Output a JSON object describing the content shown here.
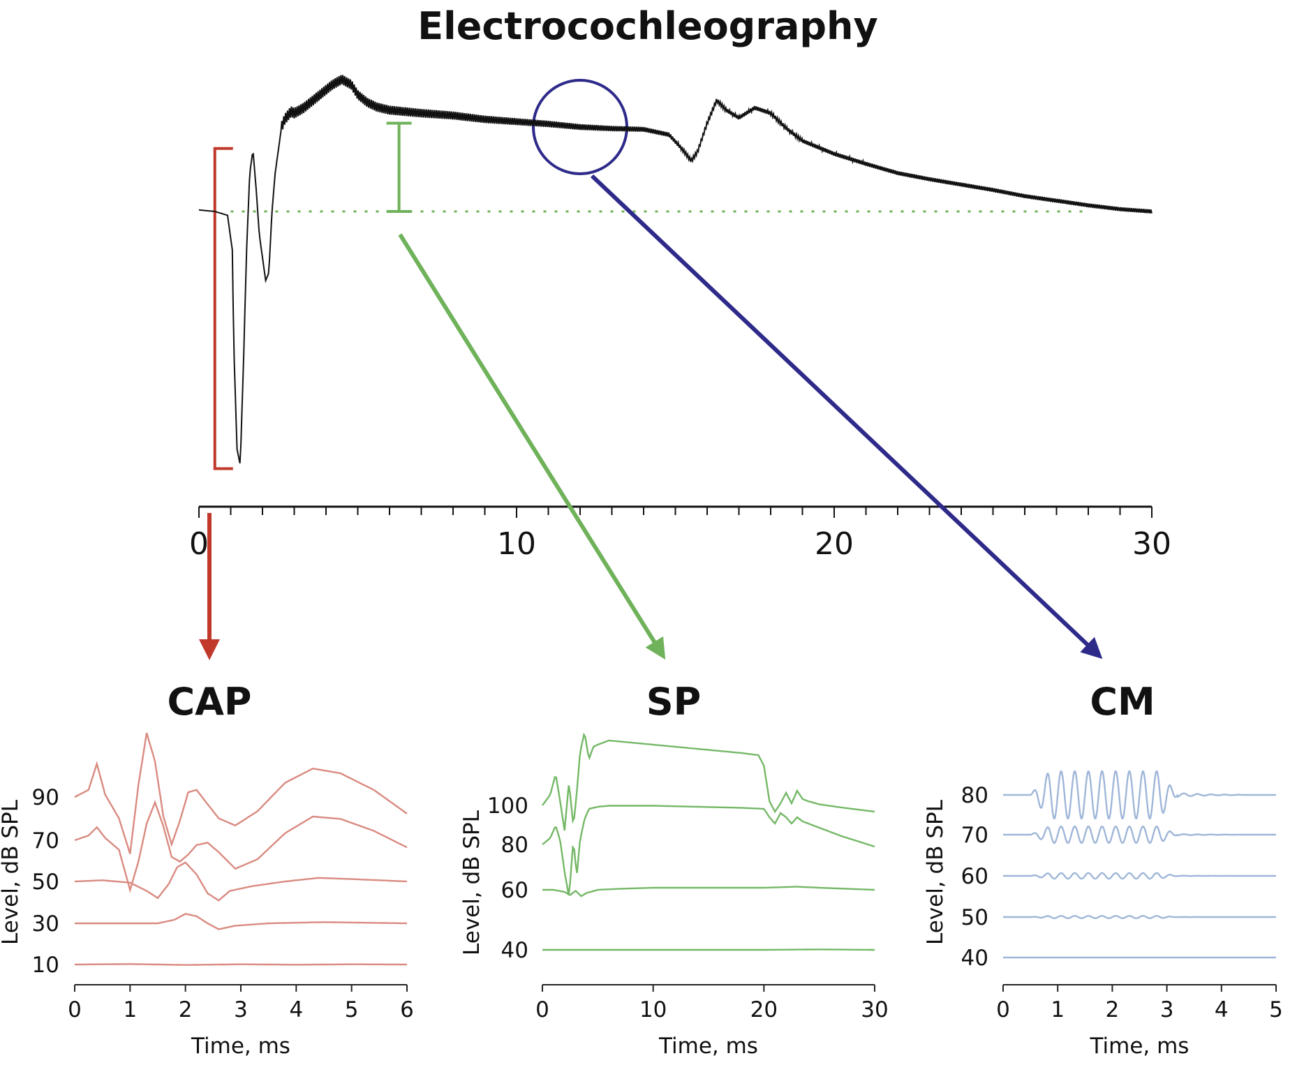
{
  "figure_title": "Electrocochleography",
  "colors": {
    "main_trace": "#111111",
    "cap": "#c0392b",
    "cap_trace": "#d98a80",
    "sp": "#6fb25a",
    "sp_trace": "#74b866",
    "cm": "#2e2a8a",
    "cm_trace": "#9fb6d8"
  },
  "chart_data": [
    {
      "id": "ecochg",
      "type": "line",
      "title": "Electrocochleography",
      "xlabel": "",
      "ylabel": "",
      "xlim": [
        0,
        30
      ],
      "x_ticks": [
        "0",
        "10",
        "20",
        "30"
      ],
      "minor_tick_step": 1,
      "baseline": 0,
      "annotations": [
        {
          "kind": "bracket",
          "target": "CAP",
          "color": "#c0392b",
          "x": 0.5,
          "y_range": [
            0.82,
            -3.35
          ]
        },
        {
          "kind": "range_marker",
          "target": "SP",
          "color": "#6fb25a",
          "x": 6.3,
          "y_range": [
            1.15,
            0
          ]
        },
        {
          "kind": "circle",
          "target": "CM",
          "color": "#2e2a8a",
          "x": 12.0,
          "y": 1.1
        },
        {
          "kind": "dotted_baseline",
          "color": "#6fb25a",
          "x_range": [
            1.0,
            28.0
          ],
          "y": 0
        }
      ],
      "series": [
        {
          "x": [
            0,
            0.5,
            0.9,
            1.05,
            1.1,
            1.2,
            1.3,
            1.4,
            1.5,
            1.6,
            1.7,
            1.8,
            1.9,
            2.0,
            2.1,
            2.2,
            2.3,
            2.4,
            2.5,
            2.6,
            2.7,
            2.8,
            2.9,
            3.0,
            3.3,
            3.6,
            3.9,
            4.2,
            4.5,
            4.8,
            5.0,
            5.3,
            5.6,
            6.0,
            7.0,
            8.0,
            9.0,
            10.0,
            11.0,
            12.0,
            13.0,
            14.0,
            14.8,
            15.2,
            15.5,
            15.7,
            16.0,
            16.3,
            16.6,
            17.0,
            17.5,
            18.0,
            18.5,
            19.0,
            20.0,
            21.0,
            22.0,
            23.0,
            24.0,
            25.0,
            26.0,
            27.0,
            28.0,
            29.0,
            30.0
          ],
          "y": [
            0.02,
            0.0,
            -0.05,
            -0.5,
            -1.8,
            -3.1,
            -3.3,
            -2.0,
            -0.5,
            0.5,
            0.8,
            0.3,
            -0.3,
            -0.6,
            -0.9,
            -0.8,
            0.0,
            0.5,
            0.8,
            1.1,
            1.2,
            1.25,
            1.3,
            1.28,
            1.35,
            1.45,
            1.55,
            1.65,
            1.72,
            1.65,
            1.52,
            1.42,
            1.36,
            1.32,
            1.28,
            1.25,
            1.2,
            1.17,
            1.14,
            1.1,
            1.08,
            1.07,
            1.0,
            0.82,
            0.66,
            0.78,
            1.15,
            1.45,
            1.32,
            1.22,
            1.35,
            1.28,
            1.08,
            0.92,
            0.75,
            0.62,
            0.5,
            0.42,
            0.35,
            0.28,
            0.2,
            0.14,
            0.08,
            0.03,
            0.0
          ]
        }
      ]
    },
    {
      "id": "cap",
      "type": "line",
      "title": "CAP",
      "xlabel": "Time, ms",
      "ylabel": "Level, dB SPL",
      "xlim": [
        0,
        6
      ],
      "x_ticks": [
        "0",
        "1",
        "2",
        "3",
        "4",
        "5",
        "6"
      ],
      "level_labels": [
        "90",
        "70",
        "50",
        "30",
        "10"
      ],
      "series": [
        {
          "name": "90",
          "x": [
            0,
            0.25,
            0.4,
            0.55,
            0.8,
            1.0,
            1.15,
            1.3,
            1.45,
            1.6,
            1.75,
            1.9,
            2.05,
            2.2,
            2.4,
            2.6,
            2.9,
            3.3,
            3.8,
            4.3,
            4.8,
            5.4,
            6.0
          ],
          "y": [
            0,
            0.3,
            1.4,
            0.1,
            -0.9,
            -2.4,
            0.5,
            2.7,
            1.5,
            -0.8,
            -2.0,
            -1.0,
            0.2,
            0.3,
            -0.3,
            -0.9,
            -1.2,
            -0.6,
            0.6,
            1.2,
            1.0,
            0.3,
            -0.7
          ]
        },
        {
          "name": "70",
          "x": [
            0,
            0.25,
            0.4,
            0.55,
            0.8,
            1.0,
            1.15,
            1.3,
            1.45,
            1.6,
            1.75,
            1.9,
            2.05,
            2.2,
            2.4,
            2.6,
            2.9,
            3.3,
            3.8,
            4.3,
            4.8,
            5.4,
            6.0
          ],
          "y": [
            0,
            0.2,
            0.55,
            0.1,
            -0.4,
            -2.1,
            -0.9,
            0.7,
            1.6,
            0.6,
            -0.7,
            -0.9,
            -0.6,
            -0.2,
            -0.1,
            -0.5,
            -1.2,
            -0.8,
            0.3,
            1.0,
            0.9,
            0.4,
            -0.3
          ]
        },
        {
          "name": "50",
          "x": [
            0,
            0.5,
            1.0,
            1.3,
            1.5,
            1.7,
            1.85,
            2.0,
            2.2,
            2.4,
            2.6,
            2.8,
            3.2,
            3.8,
            4.4,
            5.0,
            6.0
          ],
          "y": [
            0,
            0.05,
            -0.05,
            -0.4,
            -0.7,
            -0.1,
            0.6,
            0.8,
            0.3,
            -0.5,
            -0.8,
            -0.4,
            -0.2,
            0.0,
            0.15,
            0.1,
            0.0
          ]
        },
        {
          "name": "30",
          "x": [
            0,
            1.0,
            1.5,
            1.8,
            2.0,
            2.2,
            2.4,
            2.6,
            2.9,
            3.5,
            4.5,
            6.0
          ],
          "y": [
            0,
            0.0,
            0.0,
            0.15,
            0.4,
            0.3,
            0.0,
            -0.25,
            -0.1,
            0.0,
            0.05,
            0.0
          ]
        },
        {
          "name": "10",
          "x": [
            0,
            1.0,
            2.0,
            3.0,
            4.0,
            5.0,
            6.0
          ],
          "y": [
            0,
            0.02,
            -0.02,
            0.01,
            -0.01,
            0.01,
            0.0
          ]
        }
      ]
    },
    {
      "id": "sp",
      "type": "line",
      "title": "SP",
      "xlabel": "Time, ms",
      "ylabel": "Level, dB SPL",
      "xlim": [
        0,
        30
      ],
      "x_ticks": [
        "0",
        "10",
        "20",
        "30"
      ],
      "level_labels": [
        "100",
        "80",
        "60",
        "40"
      ],
      "series": [
        {
          "name": "100",
          "x": [
            0,
            0.7,
            1.2,
            1.6,
            2.0,
            2.4,
            2.8,
            3.1,
            3.4,
            3.8,
            4.2,
            4.6,
            5.0,
            6.0,
            8.0,
            10.0,
            14.0,
            18.0,
            19.5,
            20.0,
            20.5,
            21.0,
            21.5,
            22.0,
            22.5,
            23.0,
            23.5,
            24.0,
            25.0,
            27.0,
            30.0
          ],
          "y": [
            0,
            0.5,
            1.5,
            0.2,
            -1.2,
            1.1,
            -1.0,
            0.6,
            2.5,
            3.5,
            2.2,
            2.8,
            2.9,
            3.1,
            3.0,
            2.9,
            2.7,
            2.5,
            2.4,
            1.9,
            0.2,
            -0.3,
            0.1,
            0.6,
            0.1,
            0.7,
            0.3,
            0.2,
            0.05,
            -0.1,
            -0.3
          ]
        },
        {
          "name": "80",
          "x": [
            0,
            0.7,
            1.2,
            1.6,
            2.0,
            2.4,
            2.8,
            3.1,
            3.4,
            3.8,
            4.2,
            4.6,
            5.0,
            6.0,
            8.0,
            10.0,
            14.0,
            18.0,
            20.0,
            20.5,
            21.0,
            21.5,
            22.0,
            22.5,
            23.0,
            23.5,
            24.0,
            25.0,
            27.0,
            30.0
          ],
          "y": [
            0,
            0.3,
            0.9,
            0.2,
            -1.3,
            -2.5,
            0.2,
            -1.5,
            0.2,
            1.2,
            1.7,
            1.75,
            1.8,
            1.85,
            1.85,
            1.85,
            1.8,
            1.75,
            1.7,
            1.3,
            1.0,
            1.5,
            1.3,
            1.0,
            1.3,
            1.1,
            1.0,
            0.8,
            0.4,
            -0.1
          ]
        },
        {
          "name": "60",
          "x": [
            0,
            1.0,
            2.0,
            2.5,
            3.0,
            3.5,
            4.0,
            5.0,
            7.0,
            10.0,
            15.0,
            20.0,
            23.0,
            25.0,
            30.0
          ],
          "y": [
            0,
            0.0,
            -0.1,
            -0.25,
            -0.05,
            -0.3,
            -0.15,
            0.0,
            0.05,
            0.1,
            0.1,
            0.1,
            0.15,
            0.1,
            0.0
          ]
        },
        {
          "name": "40",
          "x": [
            0,
            5.0,
            10.0,
            15.0,
            20.0,
            25.0,
            30.0
          ],
          "y": [
            0,
            0.0,
            0.0,
            0.0,
            0.0,
            0.02,
            0.0
          ]
        }
      ]
    },
    {
      "id": "cm",
      "type": "line",
      "title": "CM",
      "xlabel": "Time, ms",
      "ylabel": "Level, dB SPL",
      "xlim": [
        0,
        5
      ],
      "x_ticks": [
        "0",
        "1",
        "2",
        "3",
        "4",
        "5"
      ],
      "level_labels": [
        "80",
        "70",
        "60",
        "50",
        "40"
      ],
      "series": [
        {
          "name": "80",
          "amplitude": 1.0,
          "oscillation_ms": [
            0.5,
            3.2
          ],
          "frequency_khz": 4
        },
        {
          "name": "70",
          "amplitude": 0.35,
          "oscillation_ms": [
            0.5,
            3.2
          ],
          "frequency_khz": 4
        },
        {
          "name": "60",
          "amplitude": 0.12,
          "oscillation_ms": [
            0.5,
            3.2
          ],
          "frequency_khz": 4
        },
        {
          "name": "50",
          "amplitude": 0.05,
          "oscillation_ms": [
            0.5,
            3.2
          ],
          "frequency_khz": 4
        },
        {
          "name": "40",
          "amplitude": 0.0,
          "oscillation_ms": [
            0.5,
            3.2
          ],
          "frequency_khz": 4
        }
      ]
    }
  ]
}
